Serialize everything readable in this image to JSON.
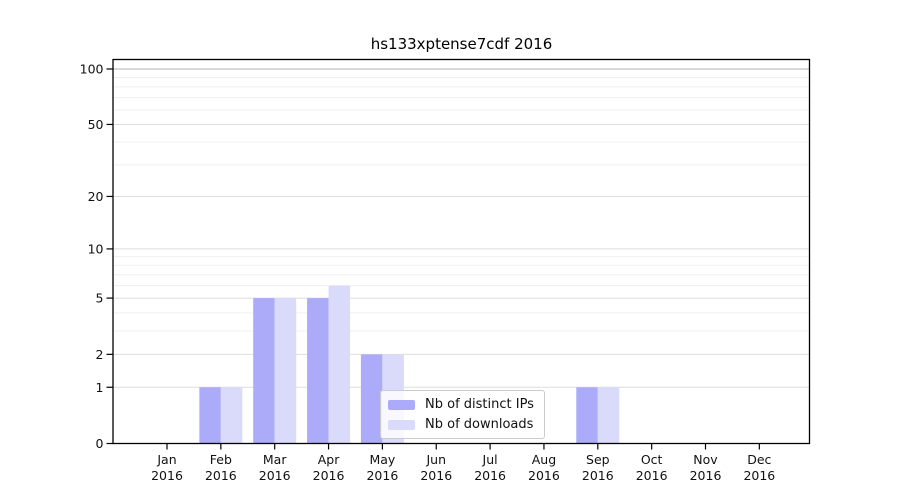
{
  "chart_data": {
    "type": "bar",
    "title": "hs133xptense7cdf 2016",
    "y_scale": "log1p",
    "ylim": [
      0,
      112
    ],
    "grid": true,
    "categories": [
      "Jan",
      "Feb",
      "Mar",
      "Apr",
      "May",
      "Jun",
      "Jul",
      "Aug",
      "Sep",
      "Oct",
      "Nov",
      "Dec"
    ],
    "x_year": "2016",
    "series": [
      {
        "name": "Nb of distinct IPs",
        "color": "#ababfa",
        "values": [
          0,
          1,
          5,
          5,
          2,
          0,
          0,
          0,
          1,
          0,
          0,
          0
        ]
      },
      {
        "name": "Nb of downloads",
        "color": "#dadafa",
        "values": [
          0,
          1,
          5,
          6,
          2,
          0,
          0,
          0,
          1,
          0,
          0,
          0
        ]
      }
    ],
    "yticks": [
      0,
      1,
      2,
      5,
      10,
      20,
      50,
      100
    ],
    "yticks_minor": [
      3,
      4,
      6,
      7,
      8,
      9,
      30,
      40,
      60,
      70,
      80,
      90
    ],
    "legend_position": "lower center-right"
  },
  "colors": {
    "background": "#ffffff",
    "spine": "#000000",
    "tick": "#000000",
    "text": "#111111",
    "grid_major": "#dedede",
    "grid_minor": "#efefef",
    "grid_top": "#b3b3b3",
    "legend_border": "#cccccc"
  }
}
